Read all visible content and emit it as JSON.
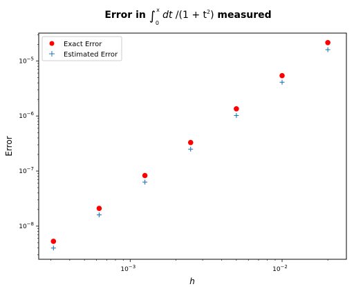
{
  "chart_data": {
    "type": "scatter",
    "title": "Error in ∫₀ˣ dt /(1 + t²) measured",
    "title_parts": {
      "prefix": "Error in ",
      "integral": "∫",
      "upper": "x",
      "lower": "0",
      "integrand_dt": "dt",
      "integrand_rest": " /(1 + t",
      "power": "2",
      "close": ")",
      "suffix": " measured"
    },
    "xlabel": "h",
    "ylabel": "Error",
    "xscale": "log",
    "yscale": "log",
    "xlim": [
      0.00025,
      0.0265
    ],
    "ylim": [
      2.5e-09,
      3.2e-05
    ],
    "x_ticks": [
      {
        "value": 0.001,
        "base": "10",
        "exp": "−3"
      },
      {
        "value": 0.01,
        "base": "10",
        "exp": "−2"
      }
    ],
    "y_ticks": [
      {
        "value": 1e-08,
        "base": "10",
        "exp": "−8"
      },
      {
        "value": 1e-07,
        "base": "10",
        "exp": "−7"
      },
      {
        "value": 1e-06,
        "base": "10",
        "exp": "−6"
      },
      {
        "value": 1e-05,
        "base": "10",
        "exp": "−5"
      }
    ],
    "grid": false,
    "legend_position": "top-left",
    "series": [
      {
        "name": "Exact Error",
        "marker": "circle",
        "color": "#ff0000",
        "x": [
          0.0003125,
          0.000625,
          0.00125,
          0.0025,
          0.005,
          0.01,
          0.02
        ],
        "y": [
          5.3e-09,
          2.1e-08,
          8.3e-08,
          3.3e-07,
          1.35e-06,
          5.4e-06,
          2.15e-05
        ]
      },
      {
        "name": "Estimated Error",
        "marker": "plus",
        "color": "#1f77b4",
        "x": [
          0.0003125,
          0.000625,
          0.00125,
          0.0025,
          0.005,
          0.01,
          0.02
        ],
        "y": [
          4e-09,
          1.6e-08,
          6.3e-08,
          2.5e-07,
          1.02e-06,
          4.1e-06,
          1.6e-05
        ]
      }
    ]
  }
}
